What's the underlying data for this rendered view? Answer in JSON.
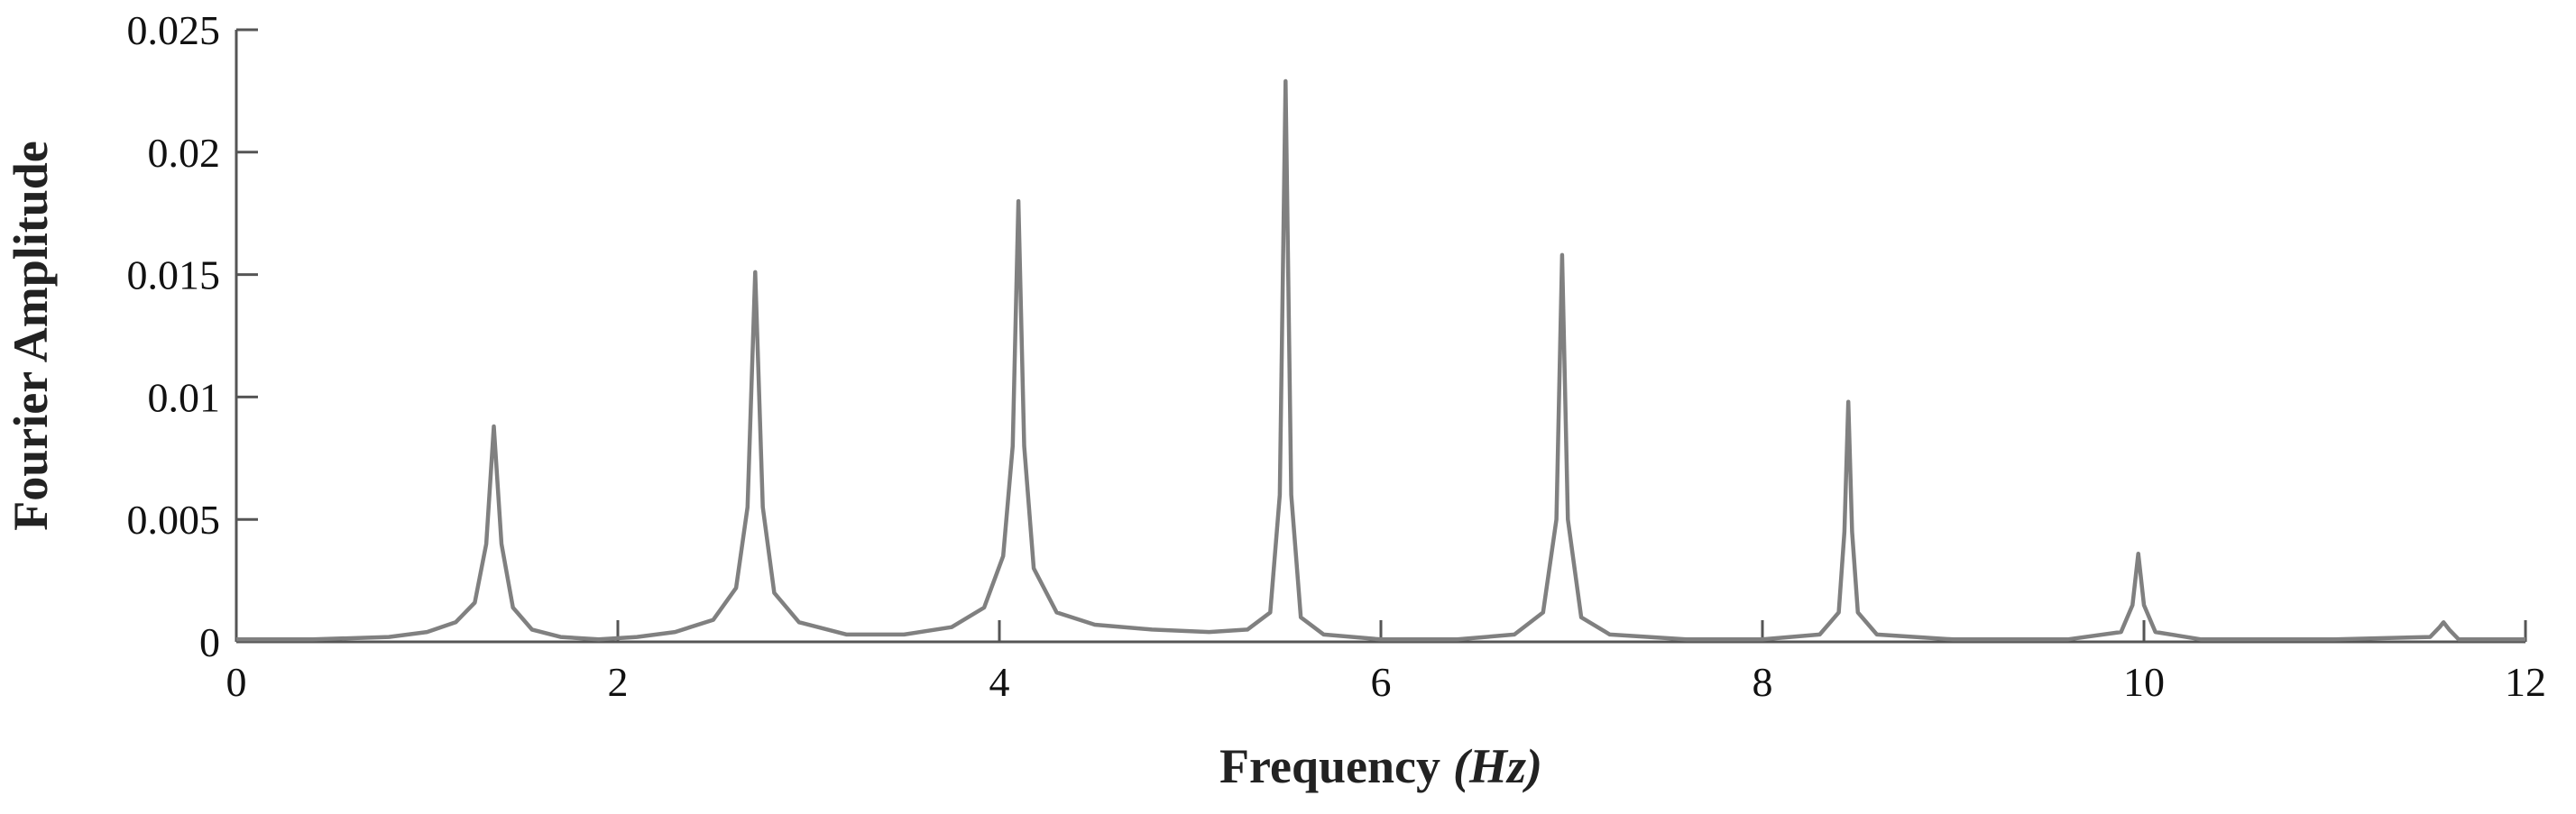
{
  "chart_data": {
    "type": "line",
    "title": "",
    "xlabel": "Frequency",
    "xlabel_unit": "(Hz)",
    "ylabel": "Fourier Amplitude",
    "xlim": [
      0,
      12
    ],
    "ylim": [
      0,
      0.025
    ],
    "x_ticks": [
      0,
      2,
      4,
      6,
      8,
      10,
      12
    ],
    "x_tick_labels": [
      "0",
      "2",
      "4",
      "6",
      "8",
      "10",
      "12"
    ],
    "y_ticks": [
      0,
      0.005,
      0.01,
      0.015,
      0.02,
      0.025
    ],
    "y_tick_labels": [
      "0",
      "0.005",
      "0.01",
      "0.015",
      "0.02",
      "0.025"
    ],
    "grid": false,
    "line_color": "#808080",
    "peaks": [
      {
        "x": 1.35,
        "y": 0.0088
      },
      {
        "x": 2.72,
        "y": 0.0151
      },
      {
        "x": 4.1,
        "y": 0.018
      },
      {
        "x": 5.5,
        "y": 0.0229
      },
      {
        "x": 6.95,
        "y": 0.0158
      },
      {
        "x": 8.45,
        "y": 0.0098
      },
      {
        "x": 9.97,
        "y": 0.0036
      },
      {
        "x": 11.57,
        "y": 0.0008
      }
    ],
    "series": [
      {
        "values_xy": [
          [
            0,
            0.0001
          ],
          [
            0.4,
            0.0001
          ],
          [
            0.8,
            0.0002
          ],
          [
            1.0,
            0.0004
          ],
          [
            1.15,
            0.0008
          ],
          [
            1.25,
            0.0016
          ],
          [
            1.31,
            0.004
          ],
          [
            1.35,
            0.0088
          ],
          [
            1.39,
            0.004
          ],
          [
            1.45,
            0.0014
          ],
          [
            1.55,
            0.0005
          ],
          [
            1.7,
            0.0002
          ],
          [
            1.9,
            0.0001
          ],
          [
            2.1,
            0.0002
          ],
          [
            2.3,
            0.0004
          ],
          [
            2.5,
            0.0009
          ],
          [
            2.62,
            0.0022
          ],
          [
            2.68,
            0.0055
          ],
          [
            2.72,
            0.0151
          ],
          [
            2.76,
            0.0055
          ],
          [
            2.82,
            0.002
          ],
          [
            2.95,
            0.0008
          ],
          [
            3.2,
            0.0003
          ],
          [
            3.5,
            0.0003
          ],
          [
            3.75,
            0.0006
          ],
          [
            3.92,
            0.0014
          ],
          [
            4.02,
            0.0035
          ],
          [
            4.07,
            0.008
          ],
          [
            4.1,
            0.018
          ],
          [
            4.13,
            0.008
          ],
          [
            4.18,
            0.003
          ],
          [
            4.3,
            0.0012
          ],
          [
            4.5,
            0.0007
          ],
          [
            4.8,
            0.0005
          ],
          [
            5.1,
            0.0004
          ],
          [
            5.3,
            0.0005
          ],
          [
            5.42,
            0.0012
          ],
          [
            5.47,
            0.006
          ],
          [
            5.5,
            0.0229
          ],
          [
            5.53,
            0.006
          ],
          [
            5.58,
            0.001
          ],
          [
            5.7,
            0.0003
          ],
          [
            6.0,
            0.0001
          ],
          [
            6.4,
            0.0001
          ],
          [
            6.7,
            0.0003
          ],
          [
            6.85,
            0.0012
          ],
          [
            6.92,
            0.005
          ],
          [
            6.95,
            0.0158
          ],
          [
            6.98,
            0.005
          ],
          [
            7.05,
            0.001
          ],
          [
            7.2,
            0.0003
          ],
          [
            7.6,
            0.0001
          ],
          [
            8.0,
            0.0001
          ],
          [
            8.3,
            0.0003
          ],
          [
            8.4,
            0.0012
          ],
          [
            8.43,
            0.0045
          ],
          [
            8.45,
            0.0098
          ],
          [
            8.47,
            0.0045
          ],
          [
            8.5,
            0.0012
          ],
          [
            8.6,
            0.0003
          ],
          [
            9.0,
            0.0001
          ],
          [
            9.6,
            0.0001
          ],
          [
            9.88,
            0.0004
          ],
          [
            9.94,
            0.0015
          ],
          [
            9.97,
            0.0036
          ],
          [
            10.0,
            0.0015
          ],
          [
            10.06,
            0.0004
          ],
          [
            10.3,
            0.0001
          ],
          [
            11.0,
            0.0001
          ],
          [
            11.5,
            0.0002
          ],
          [
            11.55,
            0.0006
          ],
          [
            11.57,
            0.0008
          ],
          [
            11.6,
            0.0005
          ],
          [
            11.65,
            0.0001
          ],
          [
            12.0,
            0.0001
          ]
        ]
      }
    ]
  }
}
